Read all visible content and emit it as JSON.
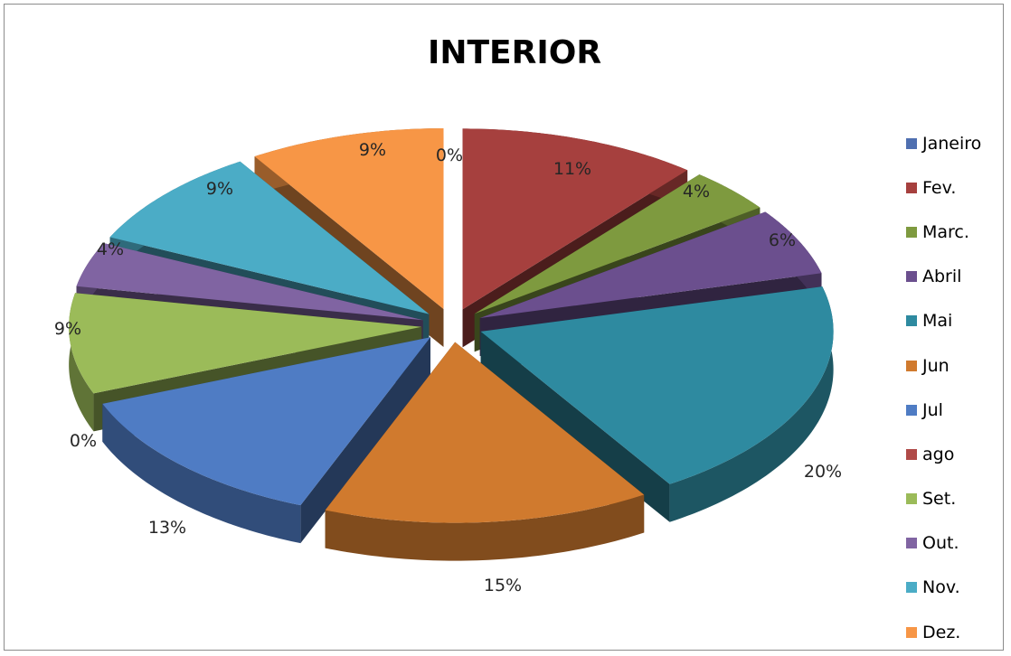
{
  "chart_data": {
    "type": "pie",
    "title": "INTERIOR",
    "legend_position": "right",
    "categories": [
      "Janeiro",
      "Fev.",
      "Marc.",
      "Abril",
      "Mai",
      "Jun",
      "Jul",
      "ago",
      "Set.",
      "Out.",
      "Nov.",
      "Dez."
    ],
    "values": [
      0,
      11,
      4,
      6,
      20,
      15,
      13,
      0,
      9,
      4,
      9,
      9
    ],
    "labels": [
      "0%",
      "11%",
      "4%",
      "6%",
      "20%",
      "15%",
      "13%",
      "0%",
      "9%",
      "4%",
      "9%",
      "9%"
    ],
    "colors": [
      "#4F6FB0",
      "#A6403E",
      "#7E9A3F",
      "#6B4F8E",
      "#2E8AA0",
      "#D07A2E",
      "#4F7CC4",
      "#B04A48",
      "#9BBB59",
      "#8064A2",
      "#4BACC6",
      "#F79646"
    ]
  }
}
